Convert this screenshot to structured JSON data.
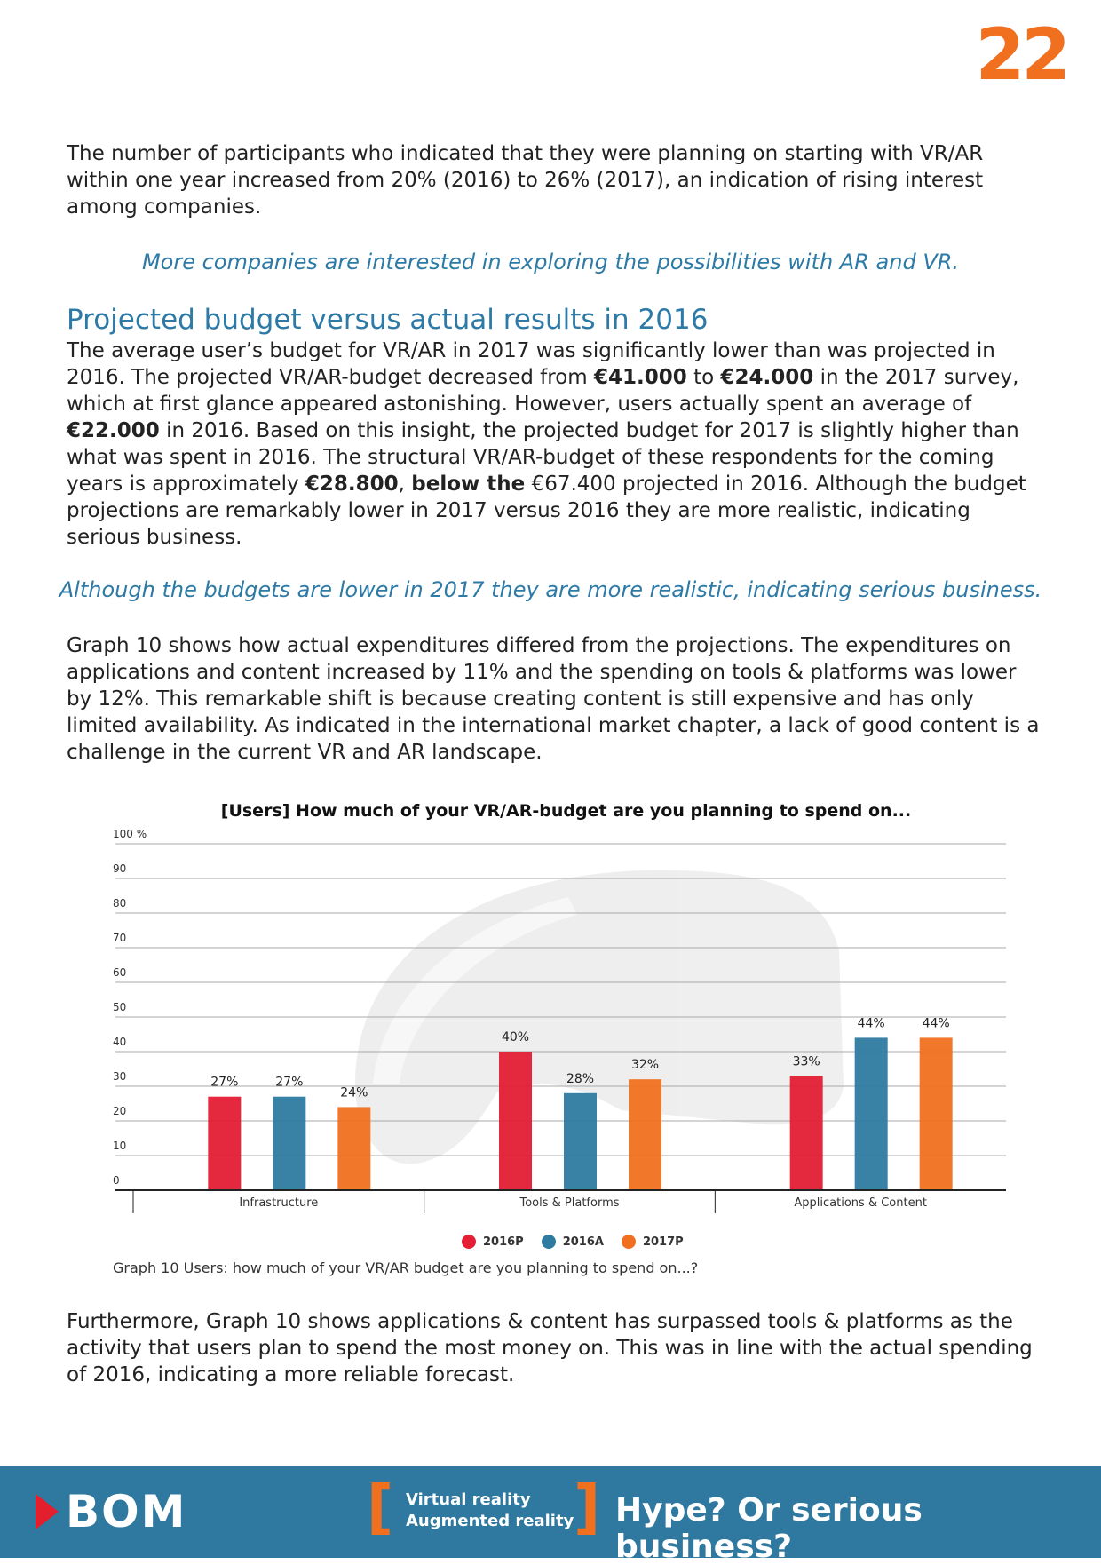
{
  "page_number": "22",
  "paragraphs": {
    "p1": "The number of participants who indicated that they were planning on starting with VR/AR within one year increased from 20% (2016) to 26% (2017), an indication of rising interest among companies.",
    "quote1": "More companies are interested in exploring the possibilities with AR and VR.",
    "section_heading": "Projected budget versus actual results in 2016",
    "p2": {
      "t1": "The average user’s budget for VR/AR in 2017 was significantly lower than was projected in 2016. The projected VR/AR-budget decreased from ",
      "b1": "€41.000",
      "t2": " to ",
      "b2": "€24.000",
      "t3": " in the 2017 survey, which at first glance appeared astonishing. However, users actually spent an average of ",
      "b3": "€22.000",
      "t4": " in 2016. Based on this insight, the projected budget for 2017 is slightly higher than what was spent in 2016. The structural VR/AR-budget of these respondents for the coming years is approximately ",
      "b4": "€28.800",
      "t5": ", ",
      "b5": "below the",
      "t6": " €67.400 projected in 2016. Although the budget projections are remarkably lower in 2017 versus 2016 they are more realistic, indicating serious business."
    },
    "quote2": "Although the budgets are lower in 2017 they are more realistic, indicating serious business.",
    "p3": "Graph 10 shows how actual expenditures differed from the projections. The expenditures on applications and content increased by 11% and the spending on tools & platforms was lower by 12%. This remarkable shift is because creating content is still expensive and has only limited availability. As indicated in the international market chapter, a lack of good content is a challenge in the current VR and AR landscape.",
    "p4": "Furthermore, Graph 10 shows applications & content has surpassed tools & platforms as the activity that users plan to spend the most money on. This was in line with the actual spending of 2016, indicating a more reliable forecast."
  },
  "chart_data": {
    "type": "bar",
    "title": "[Users] How much of your VR/AR-budget are you planning to spend on...",
    "categories": [
      "Infrastructure",
      "Tools & Platforms",
      "Applications & Content"
    ],
    "series": [
      {
        "name": "2016P",
        "color": "#e31e35",
        "values": [
          27,
          40,
          33
        ],
        "labels": [
          "27%",
          "40%",
          "33%"
        ]
      },
      {
        "name": "2016A",
        "color": "#2e7aa0",
        "values": [
          27,
          28,
          44
        ],
        "labels": [
          "27%",
          "28%",
          "44%"
        ]
      },
      {
        "name": "2017P",
        "color": "#f07020",
        "values": [
          24,
          32,
          44
        ],
        "labels": [
          "24%",
          "32%",
          "44%"
        ]
      }
    ],
    "ylim": [
      0,
      100
    ],
    "yticks": [
      0,
      10,
      20,
      30,
      40,
      50,
      60,
      70,
      80,
      90,
      100
    ],
    "ytick_labels": [
      "0",
      "10",
      "20",
      "30",
      "40",
      "50",
      "60",
      "70",
      "80",
      "90",
      "100 %"
    ],
    "grid": true,
    "legend_position": "bottom-center",
    "caption": "Graph 10 Users: how much of your VR/AR budget are you planning to spend on...?"
  },
  "footer": {
    "logo": "BOM",
    "line1": "Virtual reality",
    "line2": "Augmented  reality",
    "bracket_open": "[",
    "bracket_close": "]",
    "tagline": "Hype? Or serious business?"
  }
}
